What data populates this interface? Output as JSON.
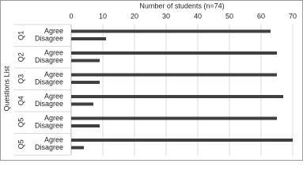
{
  "chart_data": {
    "type": "bar",
    "orientation": "horizontal",
    "xlabel": "Number of students (n=74)",
    "ylabel": "Questions List",
    "categories": [
      "Q1",
      "Q2",
      "Q3",
      "Q4",
      "Q5",
      "Q5"
    ],
    "series": [
      {
        "name": "Agree",
        "color": "#404040",
        "values": [
          63,
          65,
          65,
          67,
          65,
          70
        ]
      },
      {
        "name": "Disagree",
        "color": "#404040",
        "values": [
          11,
          9,
          9,
          7,
          9,
          4
        ]
      }
    ],
    "xlim": [
      0,
      70
    ],
    "xticks": [
      0,
      10,
      20,
      30,
      40,
      50,
      60,
      70
    ],
    "grid": true
  }
}
